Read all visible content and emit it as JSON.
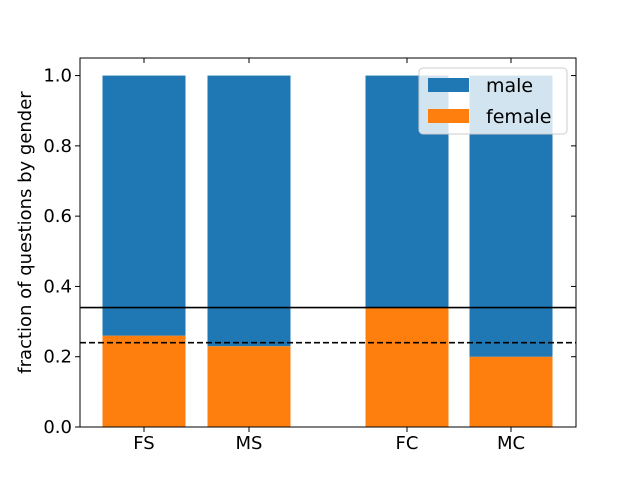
{
  "chart_data": {
    "type": "bar",
    "stacked": true,
    "categories": [
      "FS",
      "MS",
      "FC",
      "MC"
    ],
    "series": [
      {
        "name": "female",
        "color": "#ff7f0e",
        "values": [
          0.26,
          0.23,
          0.34,
          0.2
        ]
      },
      {
        "name": "male",
        "color": "#1f77b4",
        "values": [
          0.74,
          0.77,
          0.66,
          0.8
        ]
      }
    ],
    "reference_lines": [
      {
        "y": 0.34,
        "style": "solid",
        "color": "#000000"
      },
      {
        "y": 0.24,
        "style": "dashed",
        "color": "#000000"
      }
    ],
    "ylabel": "fraction of questions by gender",
    "xlabel": "",
    "ylim": [
      0,
      1.05
    ],
    "yticks": [
      "0.0",
      "0.2",
      "0.4",
      "0.6",
      "0.8",
      "1.0"
    ],
    "ytick_values": [
      0.0,
      0.2,
      0.4,
      0.6,
      0.8,
      1.0
    ],
    "legend": {
      "placement": "upper-right",
      "entries": [
        {
          "label": "male",
          "color": "#1f77b4"
        },
        {
          "label": "female",
          "color": "#ff7f0e"
        }
      ]
    },
    "grid": false
  }
}
